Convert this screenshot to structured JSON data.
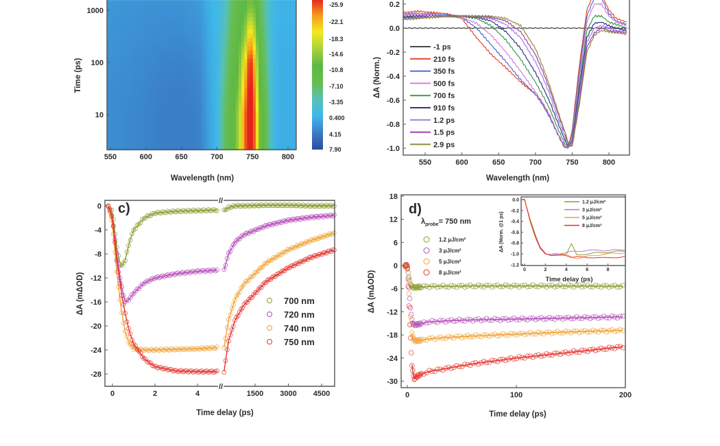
{
  "chart_data": [
    {
      "panel": "a",
      "type": "heatmap",
      "xlabel": "Wavelength (nm)",
      "ylabel": "Time (ps)",
      "x_ticks": [
        "550",
        "600",
        "650",
        "700",
        "750",
        "800"
      ],
      "y_ticks": [
        "10",
        "100",
        "1000"
      ],
      "y_scale": "log",
      "xlim": [
        545,
        811
      ],
      "ylim": [
        2.1,
        1570
      ],
      "colorbar": {
        "ticks": [
          "-25.9",
          "-22.1",
          "-18.3",
          "-14.6",
          "-10.8",
          "-7.10",
          "-3.35",
          "0.400",
          "4.15",
          "7.90"
        ],
        "colors": [
          "#e3201b",
          "#f79a1d",
          "#f3ea1b",
          "#a9d23b",
          "#5db843",
          "#67bd4e",
          "#56c1b5",
          "#3fb7ea",
          "#3a7cc7",
          "#2a4d9f"
        ]
      },
      "wavelengths": [
        550,
        575,
        600,
        625,
        650,
        675,
        690,
        700,
        710,
        720,
        730,
        740,
        745,
        750,
        755,
        760,
        770,
        780,
        790,
        800,
        810
      ],
      "times": [
        2,
        10,
        30,
        100,
        300,
        1000,
        1600
      ],
      "values": [
        [
          3,
          3.3,
          3.6,
          4,
          4.1,
          3.8,
          1.5,
          0.3,
          -6,
          -9,
          -14,
          -24,
          -26,
          -26,
          -22,
          -12,
          -7,
          0.4,
          1,
          1,
          1
        ],
        [
          3,
          3.3,
          3.6,
          4,
          4.1,
          3.8,
          1.5,
          0.3,
          -6,
          -9,
          -14,
          -24,
          -26,
          -26,
          -22,
          -12,
          -7,
          0.4,
          1,
          1,
          1
        ],
        [
          3,
          3.2,
          3.5,
          3.9,
          4,
          3.6,
          1.3,
          0.3,
          -5,
          -9,
          -12,
          -22,
          -26,
          -26,
          -20,
          -11,
          -6,
          0.4,
          1,
          1,
          1
        ],
        [
          2.8,
          3,
          3.3,
          3.6,
          3.7,
          3.3,
          1.2,
          0.3,
          -4,
          -8,
          -11,
          -19,
          -25,
          -25,
          -17,
          -10,
          -5,
          0.4,
          1,
          1,
          1
        ],
        [
          2.6,
          2.8,
          3,
          3.2,
          3.2,
          2.8,
          1,
          0.2,
          -3,
          -7,
          -10,
          -14,
          -20,
          -20,
          -13,
          -9,
          -4,
          0.4,
          0.8,
          0.8,
          0.8
        ],
        [
          2.4,
          2.6,
          2.8,
          2.8,
          2.8,
          2.4,
          0.8,
          0.1,
          -2,
          -6,
          -9,
          -11,
          -13,
          -13,
          -11,
          -8,
          -3,
          0.3,
          0.7,
          0.7,
          0.7
        ],
        [
          2.3,
          2.5,
          2.6,
          2.6,
          2.6,
          2.2,
          0.7,
          0,
          -2,
          -5.5,
          -8.5,
          -10,
          -11.5,
          -11.5,
          -10,
          -7.5,
          -3,
          0.3,
          0.7,
          0.7,
          0.7
        ]
      ]
    },
    {
      "panel": "b",
      "type": "line",
      "xlabel": "Wavelength (nm)",
      "ylabel": "ΔA (Norm.)",
      "x_ticks": [
        "550",
        "600",
        "650",
        "700",
        "750",
        "800"
      ],
      "y_ticks": [
        "0.2",
        "0.0",
        "-0.2",
        "-0.4",
        "-0.6",
        "-0.8",
        "-1.0"
      ],
      "xlim": [
        520,
        828
      ],
      "ylim": [
        -1.06,
        0.23
      ],
      "legend": "left",
      "x": [
        520,
        540,
        560,
        580,
        600,
        620,
        640,
        660,
        680,
        700,
        710,
        720,
        730,
        740,
        745,
        750,
        760,
        770,
        780,
        790,
        800,
        810,
        825
      ],
      "series": [
        {
          "name": "-1 ps",
          "color": "#4a4a4a",
          "values": [
            0,
            0,
            0,
            0,
            0,
            0,
            0,
            0,
            0,
            0,
            0,
            0,
            0,
            0,
            0,
            0,
            0,
            0,
            0,
            0,
            0,
            0,
            0
          ]
        },
        {
          "name": "210 fs",
          "color": "#e8452c",
          "values": [
            0.13,
            0.14,
            0.13,
            0.12,
            0.08,
            -0.08,
            -0.22,
            -0.33,
            -0.45,
            -0.55,
            -0.63,
            -0.74,
            -0.88,
            -1.0,
            -0.98,
            -0.85,
            -0.3,
            0.15,
            0.3,
            0.28,
            0.15,
            0.08,
            0.05
          ]
        },
        {
          "name": "350 fs",
          "color": "#4a6fc9",
          "values": [
            0.12,
            0.12,
            0.12,
            0.11,
            0.09,
            0.0,
            -0.14,
            -0.28,
            -0.43,
            -0.55,
            -0.64,
            -0.75,
            -0.88,
            -0.99,
            -0.99,
            -0.88,
            -0.35,
            0.1,
            0.25,
            0.25,
            0.12,
            0.06,
            0.03
          ]
        },
        {
          "name": "500 fs",
          "color": "#d77fd6",
          "values": [
            0.11,
            0.11,
            0.11,
            0.1,
            0.09,
            0.04,
            -0.06,
            -0.2,
            -0.36,
            -0.53,
            -0.62,
            -0.73,
            -0.87,
            -0.98,
            -1.0,
            -0.9,
            -0.4,
            0.05,
            0.2,
            0.2,
            0.1,
            0.05,
            0.02
          ]
        },
        {
          "name": "700 fs",
          "color": "#3c9a4e",
          "values": [
            0.1,
            0.1,
            0.1,
            0.1,
            0.1,
            0.08,
            0.02,
            -0.1,
            -0.26,
            -0.45,
            -0.56,
            -0.68,
            -0.83,
            -0.96,
            -1.0,
            -0.93,
            -0.45,
            -0.02,
            0.1,
            0.1,
            0.05,
            0.03,
            0.0
          ]
        },
        {
          "name": "910 fs",
          "color": "#35308f",
          "values": [
            0.09,
            0.1,
            0.1,
            0.1,
            0.1,
            0.09,
            0.06,
            -0.03,
            -0.17,
            -0.37,
            -0.49,
            -0.62,
            -0.78,
            -0.93,
            -0.99,
            -0.95,
            -0.5,
            -0.08,
            0.04,
            0.05,
            0.02,
            0.0,
            -0.02
          ]
        },
        {
          "name": "1.2 ps",
          "color": "#9f7fe0",
          "values": [
            0.08,
            0.09,
            0.1,
            0.1,
            0.1,
            0.1,
            0.08,
            0.03,
            -0.08,
            -0.28,
            -0.41,
            -0.56,
            -0.74,
            -0.9,
            -0.98,
            -0.97,
            -0.55,
            -0.12,
            0.0,
            0.02,
            0.0,
            -0.02,
            -0.03
          ]
        },
        {
          "name": "1.5 ps",
          "color": "#a040b0",
          "values": [
            0.08,
            0.09,
            0.09,
            0.1,
            0.1,
            0.1,
            0.09,
            0.06,
            -0.03,
            -0.22,
            -0.36,
            -0.52,
            -0.7,
            -0.87,
            -0.97,
            -0.98,
            -0.6,
            -0.16,
            -0.04,
            0.0,
            -0.02,
            -0.03,
            -0.04
          ]
        },
        {
          "name": "2.9 ps",
          "color": "#8c8c3a",
          "values": [
            0.07,
            0.08,
            0.09,
            0.1,
            0.1,
            0.1,
            0.1,
            0.08,
            0.02,
            -0.17,
            -0.32,
            -0.49,
            -0.68,
            -0.86,
            -0.96,
            -0.99,
            -0.63,
            -0.2,
            -0.06,
            -0.02,
            -0.03,
            -0.04,
            -0.05
          ]
        }
      ]
    },
    {
      "panel": "c",
      "panel_label": "c)",
      "type": "scatter",
      "xlabel": "Time delay (ps)",
      "ylabel": "ΔA (mΔOD)",
      "x_ticks_left": [
        "0",
        "2",
        "4"
      ],
      "x_ticks_right": [
        "1500",
        "3000",
        "4500"
      ],
      "y_ticks": [
        "0",
        "-4",
        "-8",
        "-12",
        "-16",
        "-20",
        "-24",
        "-28"
      ],
      "axis_break": "//",
      "xlim_left": [
        -0.35,
        5
      ],
      "xlim_right": [
        100,
        5100
      ],
      "ylim": [
        -31,
        1
      ],
      "legend": "right",
      "x_short": [
        -0.2,
        0,
        0.2,
        0.4,
        0.6,
        0.8,
        1,
        1.5,
        2,
        3,
        4,
        5
      ],
      "x_long": [
        100,
        300,
        600,
        1000,
        2000,
        3000,
        4000,
        5000
      ],
      "series": [
        {
          "name": "700 nm",
          "color": "#8a9a2c",
          "short": [
            0,
            -1,
            -7,
            -10.3,
            -9,
            -6,
            -4,
            -2,
            -1.2,
            -0.9,
            -0.8,
            -0.7
          ],
          "long": [
            -0.8,
            -0.3,
            0,
            0,
            0.1,
            0.1,
            0,
            0
          ]
        },
        {
          "name": "720 nm",
          "color": "#b44ab8",
          "short": [
            0,
            -2,
            -8,
            -13,
            -16,
            -15.5,
            -14.5,
            -12.8,
            -12,
            -11.3,
            -10.9,
            -10.7
          ],
          "long": [
            -10.7,
            -8,
            -6,
            -4.8,
            -3.3,
            -2.4,
            -1.9,
            -1.6
          ]
        },
        {
          "name": "740 nm",
          "color": "#f0a030",
          "short": [
            0,
            -3,
            -11,
            -17,
            -21,
            -23,
            -23.8,
            -24,
            -24,
            -23.9,
            -23.8,
            -23.6
          ],
          "long": [
            -23.6,
            -19,
            -15.5,
            -13,
            -9.5,
            -7.3,
            -5.8,
            -4.6
          ]
        },
        {
          "name": "750 nm",
          "color": "#e6302a",
          "short": [
            0,
            -2,
            -9,
            -14,
            -18,
            -21,
            -23,
            -25.5,
            -26.8,
            -27.5,
            -27.6,
            -27.6
          ],
          "long": [
            -27.6,
            -22.5,
            -19,
            -16.5,
            -12.6,
            -10.3,
            -8.6,
            -7.4
          ]
        }
      ]
    },
    {
      "panel": "d",
      "panel_label": "d)",
      "type": "scatter",
      "xlabel": "Time delay (ps)",
      "ylabel": "ΔA (mΔOD)",
      "x_ticks": [
        "0",
        "100",
        "200"
      ],
      "y_ticks": [
        "18",
        "12",
        "6",
        "0",
        "-6",
        "-12",
        "-18",
        "-24",
        "-30"
      ],
      "xlim": [
        -5.7,
        200
      ],
      "ylim": [
        -31.8,
        18.3
      ],
      "probe": {
        "symbol": "λ",
        "subscript": "probe",
        "text": "= 750 nm"
      },
      "legend": "top-left",
      "x": [
        0,
        2,
        4,
        6,
        10,
        20,
        40,
        60,
        100,
        150,
        200
      ],
      "series": [
        {
          "name": "1.2 μJ/cm²",
          "color": "#8a9a2c",
          "values": [
            0,
            -4,
            -5.5,
            -5.7,
            -5.6,
            -5.4,
            -5.4,
            -5.3,
            -5.3,
            -5.3,
            -5.4
          ]
        },
        {
          "name": "3 μJ/cm²",
          "color": "#b44ab8",
          "values": [
            0,
            -8,
            -14,
            -15.5,
            -15.2,
            -14.6,
            -14.3,
            -14.1,
            -13.9,
            -13.6,
            -13.3
          ]
        },
        {
          "name": "5 μJ/cm²",
          "color": "#f0a030",
          "values": [
            0,
            -10,
            -17,
            -19.5,
            -19.5,
            -19,
            -18.6,
            -18.3,
            -17.8,
            -17.2,
            -16.8
          ]
        },
        {
          "name": "8 μJ/cm²",
          "color": "#e6302a",
          "values": [
            0,
            -14,
            -25,
            -29.5,
            -28.5,
            -27.5,
            -26.5,
            -25.5,
            -24,
            -22.5,
            -21
          ]
        }
      ],
      "inset": {
        "type": "line",
        "xlabel": "Time delay (ps)",
        "ylabel": "ΔA (Norm. @1 ps)",
        "x_ticks": [
          "0",
          "2",
          "4",
          "6",
          "8"
        ],
        "y_ticks": [
          "0.0",
          "-0.2",
          "-0.4",
          "-0.6",
          "-0.8",
          "-1.0",
          "-1.2"
        ],
        "xlim": [
          -0.3,
          9.7
        ],
        "ylim": [
          -1.22,
          0.1
        ],
        "legend": "top-right",
        "x": [
          0,
          0.5,
          1,
          1.5,
          2,
          2.5,
          3,
          4,
          4.5,
          5,
          6,
          7,
          8,
          9.5
        ],
        "series": [
          {
            "name": "1.2 μJ/cm²",
            "color": "#8a9a2c",
            "values": [
              0,
              -0.35,
              -0.63,
              -0.87,
              -1.0,
              -1.02,
              -1.0,
              -1.0,
              -0.82,
              -1.02,
              -1.0,
              -0.98,
              -0.97,
              -0.95
            ]
          },
          {
            "name": "3 μJ/cm²",
            "color": "#c070d0",
            "values": [
              0,
              -0.38,
              -0.67,
              -0.9,
              -1.01,
              -1.02,
              -1.0,
              -0.98,
              -0.96,
              -0.95,
              -0.94,
              -0.93,
              -0.94,
              -0.92
            ]
          },
          {
            "name": "5 μJ/cm²",
            "color": "#f0a030",
            "values": [
              0,
              -0.36,
              -0.65,
              -0.88,
              -1.0,
              -1.03,
              -1.02,
              -1.02,
              -1.06,
              -1.08,
              -1.05,
              -1.02,
              -1.0,
              -0.98
            ]
          },
          {
            "name": "8 μJ/cm²",
            "color": "#e6302a",
            "values": [
              0,
              -0.36,
              -0.66,
              -0.89,
              -1.0,
              -1.02,
              -1.02,
              -1.04,
              -1.06,
              -1.04,
              -1.08,
              -1.06,
              -1.08,
              -1.05
            ]
          }
        ]
      }
    }
  ]
}
